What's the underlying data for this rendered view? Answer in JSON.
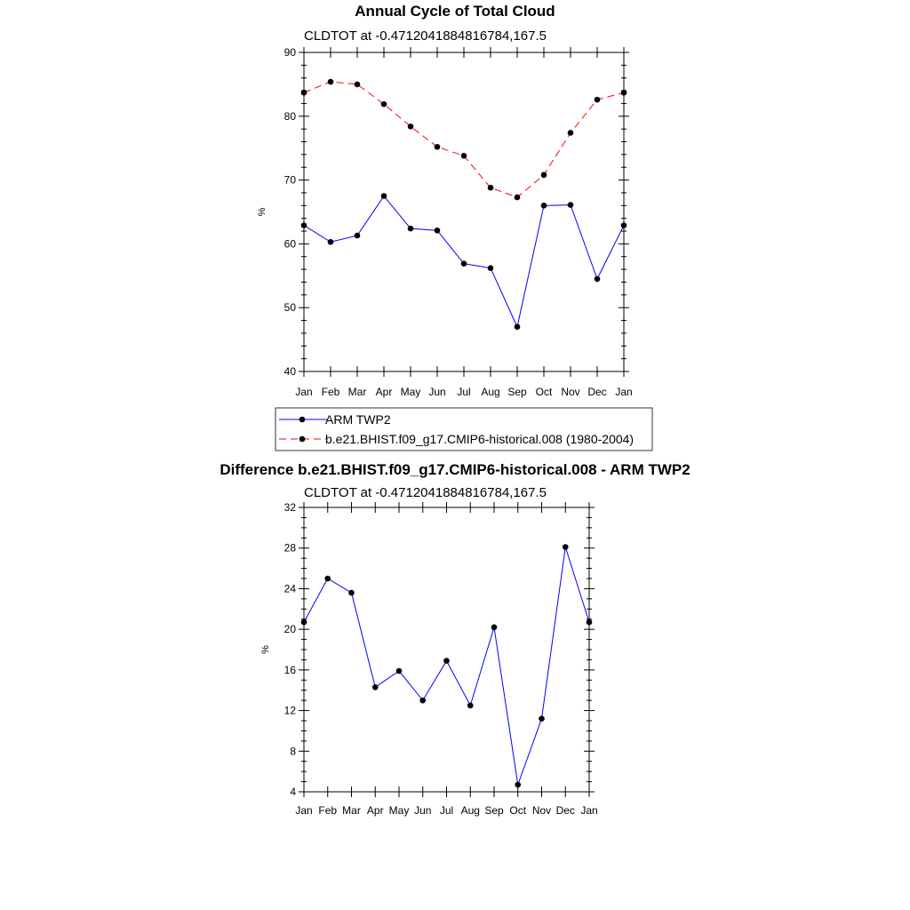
{
  "chart_data": [
    {
      "type": "line",
      "title": "Annual Cycle of Total Cloud",
      "subtitle": "CLDTOT at -0.4712041884816784,167.5",
      "xlabel": "",
      "ylabel": "%",
      "categories": [
        "Jan",
        "Feb",
        "Mar",
        "Apr",
        "May",
        "Jun",
        "Jul",
        "Aug",
        "Sep",
        "Oct",
        "Nov",
        "Dec",
        "Jan"
      ],
      "ylim": [
        40,
        90
      ],
      "yticks": [
        40,
        50,
        60,
        70,
        80,
        90
      ],
      "grid": false,
      "legend_position": "below",
      "series": [
        {
          "name": "ARM TWP2",
          "color": "#0000ff",
          "dash": "solid",
          "values": [
            62.9,
            60.3,
            61.3,
            67.5,
            62.4,
            62.1,
            56.9,
            56.2,
            47.0,
            66.0,
            66.1,
            54.5,
            62.9
          ]
        },
        {
          "name": "b.e21.BHIST.f09_g17.CMIP6-historical.008 (1980-2004)",
          "color": "#ff0000",
          "dash": "dashed",
          "values": [
            83.7,
            85.4,
            85.0,
            81.9,
            78.4,
            75.2,
            73.8,
            68.8,
            67.3,
            70.8,
            77.4,
            82.6,
            83.7
          ]
        }
      ]
    },
    {
      "type": "line",
      "title": "Difference b.e21.BHIST.f09_g17.CMIP6-historical.008 - ARM TWP2",
      "subtitle": "CLDTOT at -0.4712041884816784,167.5",
      "xlabel": "",
      "ylabel": "%",
      "categories": [
        "Jan",
        "Feb",
        "Mar",
        "Apr",
        "May",
        "Jun",
        "Jul",
        "Aug",
        "Sep",
        "Oct",
        "Nov",
        "Dec",
        "Jan"
      ],
      "ylim": [
        4,
        32
      ],
      "yticks": [
        4,
        8,
        12,
        16,
        20,
        24,
        28,
        32
      ],
      "grid": false,
      "series": [
        {
          "color": "#0000ff",
          "dash": "solid",
          "values": [
            20.7,
            25.0,
            23.6,
            14.3,
            15.9,
            13.0,
            16.9,
            12.5,
            20.2,
            4.7,
            11.2,
            28.1,
            20.7
          ]
        }
      ]
    }
  ]
}
